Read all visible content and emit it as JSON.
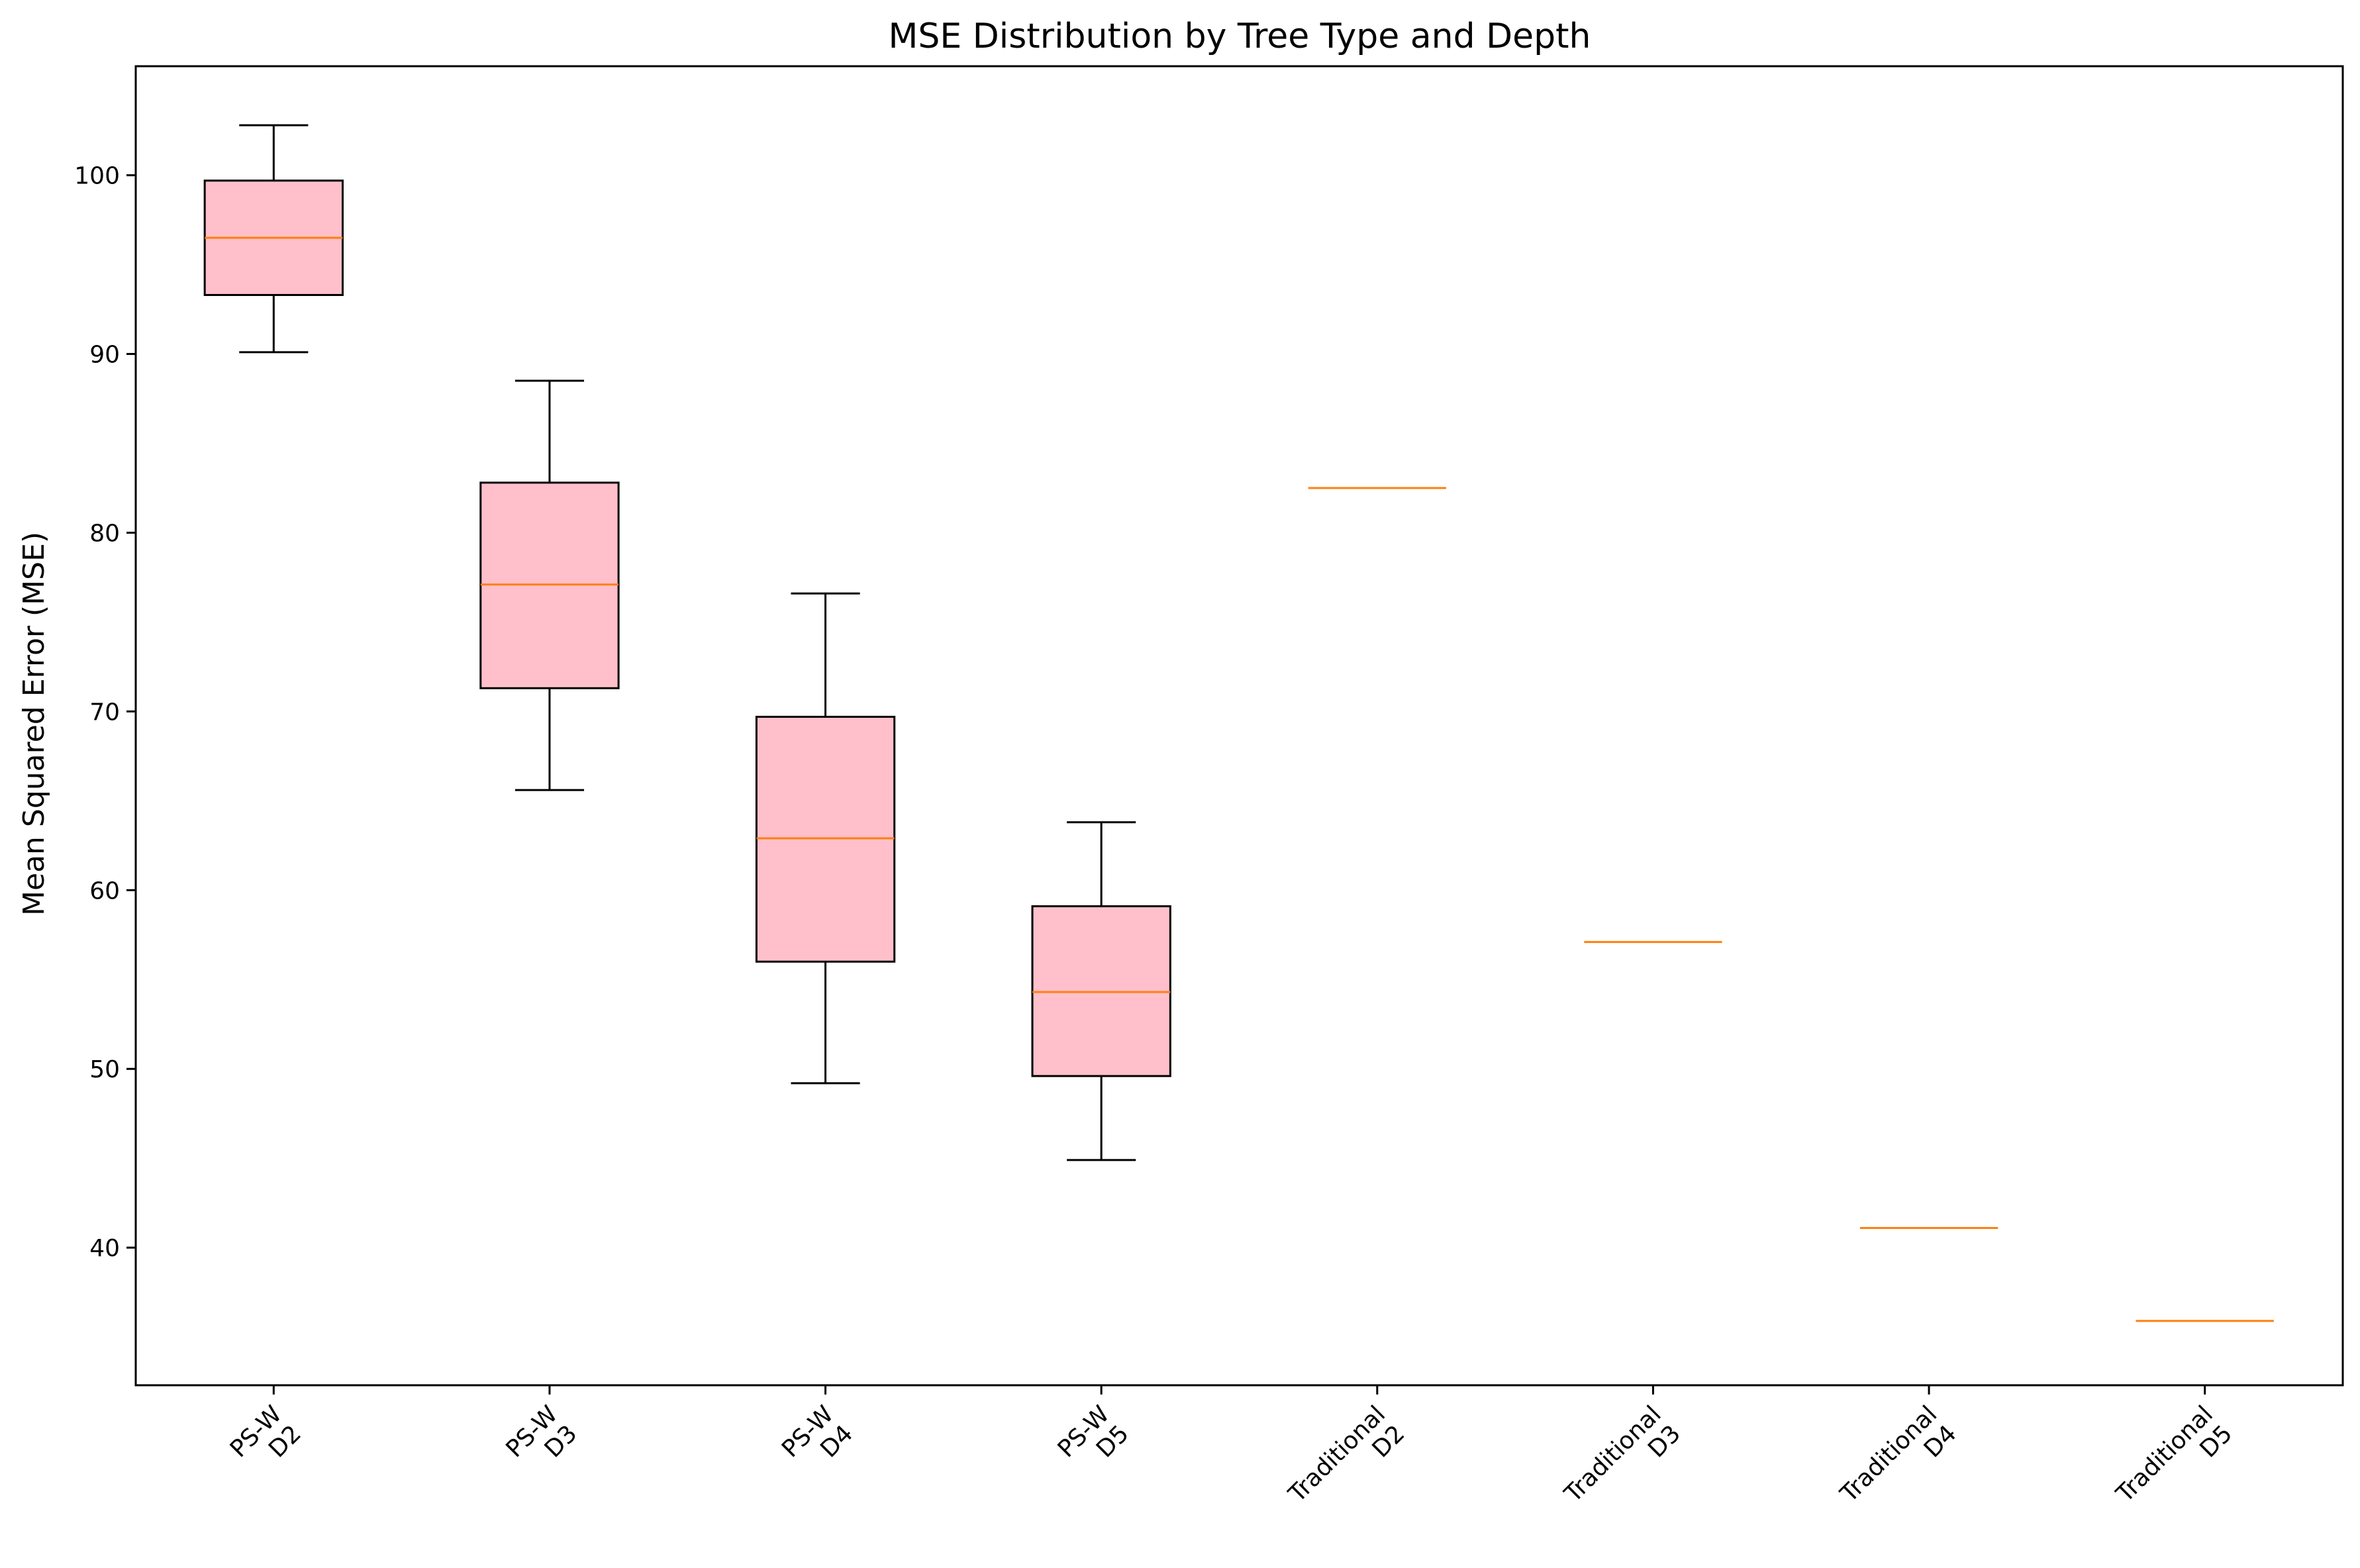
{
  "chart_data": {
    "type": "box",
    "title": "MSE Distribution by Tree Type and Depth",
    "xlabel": "",
    "ylabel": "Mean Squared Error (MSE)",
    "ylim": [
      32.3,
      106.1
    ],
    "yticks": [
      40,
      50,
      60,
      70,
      80,
      90,
      100
    ],
    "grid": false,
    "colors": {
      "box_fill": "#ffc0cb",
      "median": "#ff7f0e",
      "whisker": "#000000"
    },
    "categories": [
      [
        "PS-W",
        "D2"
      ],
      [
        "PS-W",
        "D3"
      ],
      [
        "PS-W",
        "D4"
      ],
      [
        "PS-W",
        "D5"
      ],
      [
        "Traditional",
        "D2"
      ],
      [
        "Traditional",
        "D3"
      ],
      [
        "Traditional",
        "D4"
      ],
      [
        "Traditional",
        "D5"
      ]
    ],
    "boxes": [
      {
        "whisker_low": 90.1,
        "q1": 93.3,
        "median": 96.5,
        "q3": 99.7,
        "whisker_high": 102.8
      },
      {
        "whisker_low": 65.6,
        "q1": 71.3,
        "median": 77.1,
        "q3": 82.8,
        "whisker_high": 88.5
      },
      {
        "whisker_low": 49.2,
        "q1": 56.0,
        "median": 62.9,
        "q3": 69.7,
        "whisker_high": 76.6
      },
      {
        "whisker_low": 44.9,
        "q1": 49.6,
        "median": 54.3,
        "q3": 59.1,
        "whisker_high": 63.8
      },
      {
        "whisker_low": 82.5,
        "q1": 82.5,
        "median": 82.5,
        "q3": 82.5,
        "whisker_high": 82.5
      },
      {
        "whisker_low": 57.1,
        "q1": 57.1,
        "median": 57.1,
        "q3": 57.1,
        "whisker_high": 57.1
      },
      {
        "whisker_low": 41.1,
        "q1": 41.1,
        "median": 41.1,
        "q3": 41.1,
        "whisker_high": 41.1
      },
      {
        "whisker_low": 35.9,
        "q1": 35.9,
        "median": 35.9,
        "q3": 35.9,
        "whisker_high": 35.9
      }
    ]
  }
}
